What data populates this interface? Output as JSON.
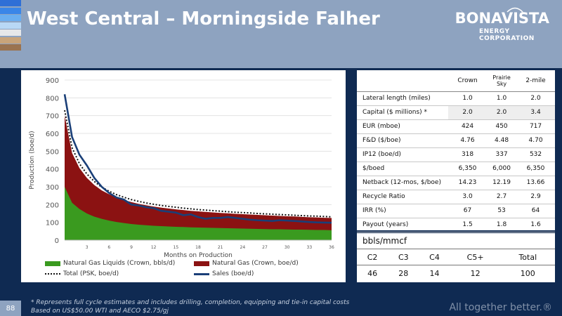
{
  "header": {
    "title": "West Central – Morningside Falher",
    "logo_name": "BONAVISTA",
    "logo_sub": "ENERGY CORPORATION",
    "stripe_colors": [
      "#2f6fd6",
      "#3a86e8",
      "#6aaef0",
      "#b8d8f5",
      "#e6e8ea",
      "#c8a47a",
      "#9a7350"
    ]
  },
  "chart_data": {
    "type": "area",
    "xlabel": "Months on Production",
    "ylabel": "Production (boe/d)",
    "xlim": [
      0,
      36
    ],
    "ylim": [
      0,
      900
    ],
    "yticks": [
      0,
      100,
      200,
      300,
      400,
      500,
      600,
      700,
      800,
      900
    ],
    "xticks": [
      3,
      6,
      9,
      12,
      15,
      18,
      21,
      24,
      27,
      30,
      33,
      36
    ],
    "x": [
      0,
      1,
      2,
      3,
      4,
      5,
      6,
      7,
      8,
      9,
      10,
      11,
      12,
      13,
      14,
      15,
      16,
      17,
      18,
      19,
      20,
      21,
      22,
      23,
      24,
      25,
      26,
      27,
      28,
      29,
      30,
      31,
      32,
      33,
      34,
      35,
      36
    ],
    "series": [
      {
        "name": "Natural Gas Liquids (Crown, bbls/d)",
        "kind": "area",
        "color": "#3a9a1f",
        "values": [
          300,
          210,
          175,
          150,
          132,
          120,
          110,
          102,
          96,
          91,
          87,
          84,
          81,
          79,
          77,
          75,
          74,
          72,
          71,
          70,
          69,
          68,
          67,
          66,
          65,
          64,
          63,
          62,
          61,
          61,
          60,
          59,
          59,
          58,
          57,
          57,
          56
        ]
      },
      {
        "name": "Natural Gas (Crown, boe/d)",
        "kind": "area",
        "color": "#8b1212",
        "values": [
          700,
          490,
          405,
          350,
          310,
          280,
          258,
          240,
          226,
          214,
          204,
          196,
          189,
          183,
          178,
          173,
          169,
          165,
          162,
          159,
          156,
          153,
          151,
          148,
          146,
          144,
          142,
          140,
          138,
          136,
          134,
          133,
          131,
          129,
          128,
          126,
          125
        ]
      },
      {
        "name": "Total (PSK, boe/d)",
        "kind": "dotted-line",
        "color": "#111111",
        "values": [
          730,
          520,
          430,
          372,
          330,
          298,
          275,
          256,
          241,
          228,
          218,
          209,
          202,
          195,
          190,
          185,
          180,
          176,
          172,
          169,
          166,
          163,
          160,
          157,
          155,
          153,
          150,
          148,
          146,
          144,
          142,
          140,
          138,
          136,
          135,
          133,
          131
        ]
      },
      {
        "name": "Sales (boe/d)",
        "kind": "line",
        "color": "#1a3f78",
        "values": [
          820,
          580,
          480,
          420,
          350,
          300,
          265,
          240,
          228,
          200,
          195,
          185,
          180,
          165,
          160,
          155,
          140,
          145,
          130,
          120,
          125,
          125,
          130,
          125,
          120,
          115,
          112,
          110,
          108,
          112,
          110,
          108,
          105,
          102,
          100,
          99,
          98
        ]
      }
    ]
  },
  "metrics_table": {
    "headers": [
      "",
      "Crown",
      "Prairie Sky",
      "2-mile"
    ],
    "rows": [
      [
        "Lateral length (miles)",
        "1.0",
        "1.0",
        "2.0"
      ],
      [
        "Capital ($ millions) *",
        "2.0",
        "2.0",
        "3.4"
      ],
      [
        "EUR (mboe)",
        "424",
        "450",
        "717"
      ],
      [
        "F&D ($/boe)",
        "4.76",
        "4.48",
        "4.70"
      ],
      [
        "IP12 (boe/d)",
        "318",
        "337",
        "532"
      ],
      [
        "$/boed",
        "6,350",
        "6,000",
        "6,350"
      ],
      [
        "Netback (12-mos, $/boe)",
        "14.23",
        "12.19",
        "13.66"
      ],
      [
        "Recycle Ratio",
        "3.0",
        "2.7",
        "2.9"
      ],
      [
        "IRR (%)",
        "67",
        "53",
        "64"
      ],
      [
        "Payout (years)",
        "1.5",
        "1.8",
        "1.6"
      ]
    ]
  },
  "composition": {
    "title": "bbls/mmcf",
    "headers": [
      "C2",
      "C3",
      "C4",
      "C5+",
      "Total"
    ],
    "values": [
      "46",
      "28",
      "14",
      "12",
      "100"
    ]
  },
  "footer": {
    "page_number": "88",
    "footnote_1": "* Represents full cycle estimates and includes drilling, completion, equipping and tie-in capital costs",
    "footnote_2": "Based on US$50.00 WTI and AECO $2.75/gj",
    "tagline": "All together better.®"
  }
}
